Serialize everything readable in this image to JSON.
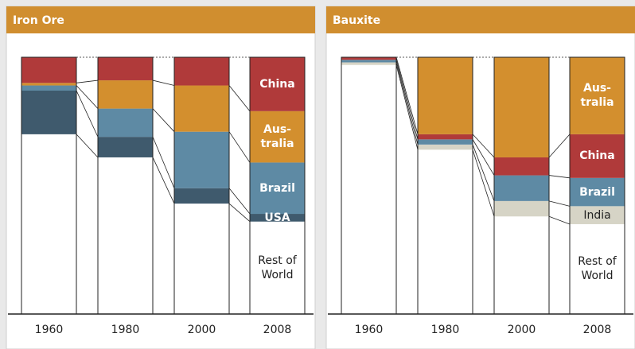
{
  "chart_data": [
    {
      "type": "bar",
      "stacked": true,
      "title": "Iron Ore",
      "categories": [
        "1960",
        "1980",
        "2000",
        "2008"
      ],
      "ylim": [
        0,
        100
      ],
      "series": [
        {
          "name": "Rest of\nWorld",
          "color": "#ffffff",
          "values": [
            70,
            61,
            43,
            36
          ]
        },
        {
          "name": "USA",
          "color": "#3f5a6d",
          "values": [
            17,
            8,
            6,
            3
          ]
        },
        {
          "name": "Brazil",
          "color": "#5e8aa4",
          "values": [
            2,
            11,
            22,
            20
          ]
        },
        {
          "name": "Aus-\ntralia",
          "color": "#d38f2e",
          "values": [
            1,
            11,
            18,
            20
          ]
        },
        {
          "name": "China",
          "color": "#b03a3a",
          "values": [
            10,
            9,
            11,
            21
          ]
        }
      ]
    },
    {
      "type": "bar",
      "stacked": true,
      "title": "Bauxite",
      "categories": [
        "1960",
        "1980",
        "2000",
        "2008"
      ],
      "ylim": [
        0,
        100
      ],
      "series": [
        {
          "name": "Rest of\nWorld",
          "color": "#ffffff",
          "values": [
            97,
            64,
            38,
            35
          ]
        },
        {
          "name": "India",
          "color": "#d6d4c6",
          "values": [
            1,
            2,
            6,
            7
          ]
        },
        {
          "name": "Brazil",
          "color": "#5e8aa4",
          "values": [
            1,
            2,
            10,
            11
          ]
        },
        {
          "name": "China",
          "color": "#b03a3a",
          "values": [
            1,
            2,
            7,
            17
          ]
        },
        {
          "name": "Aus-\ntralia",
          "color": "#d38f2e",
          "values": [
            0,
            30,
            39,
            30
          ]
        }
      ]
    }
  ]
}
